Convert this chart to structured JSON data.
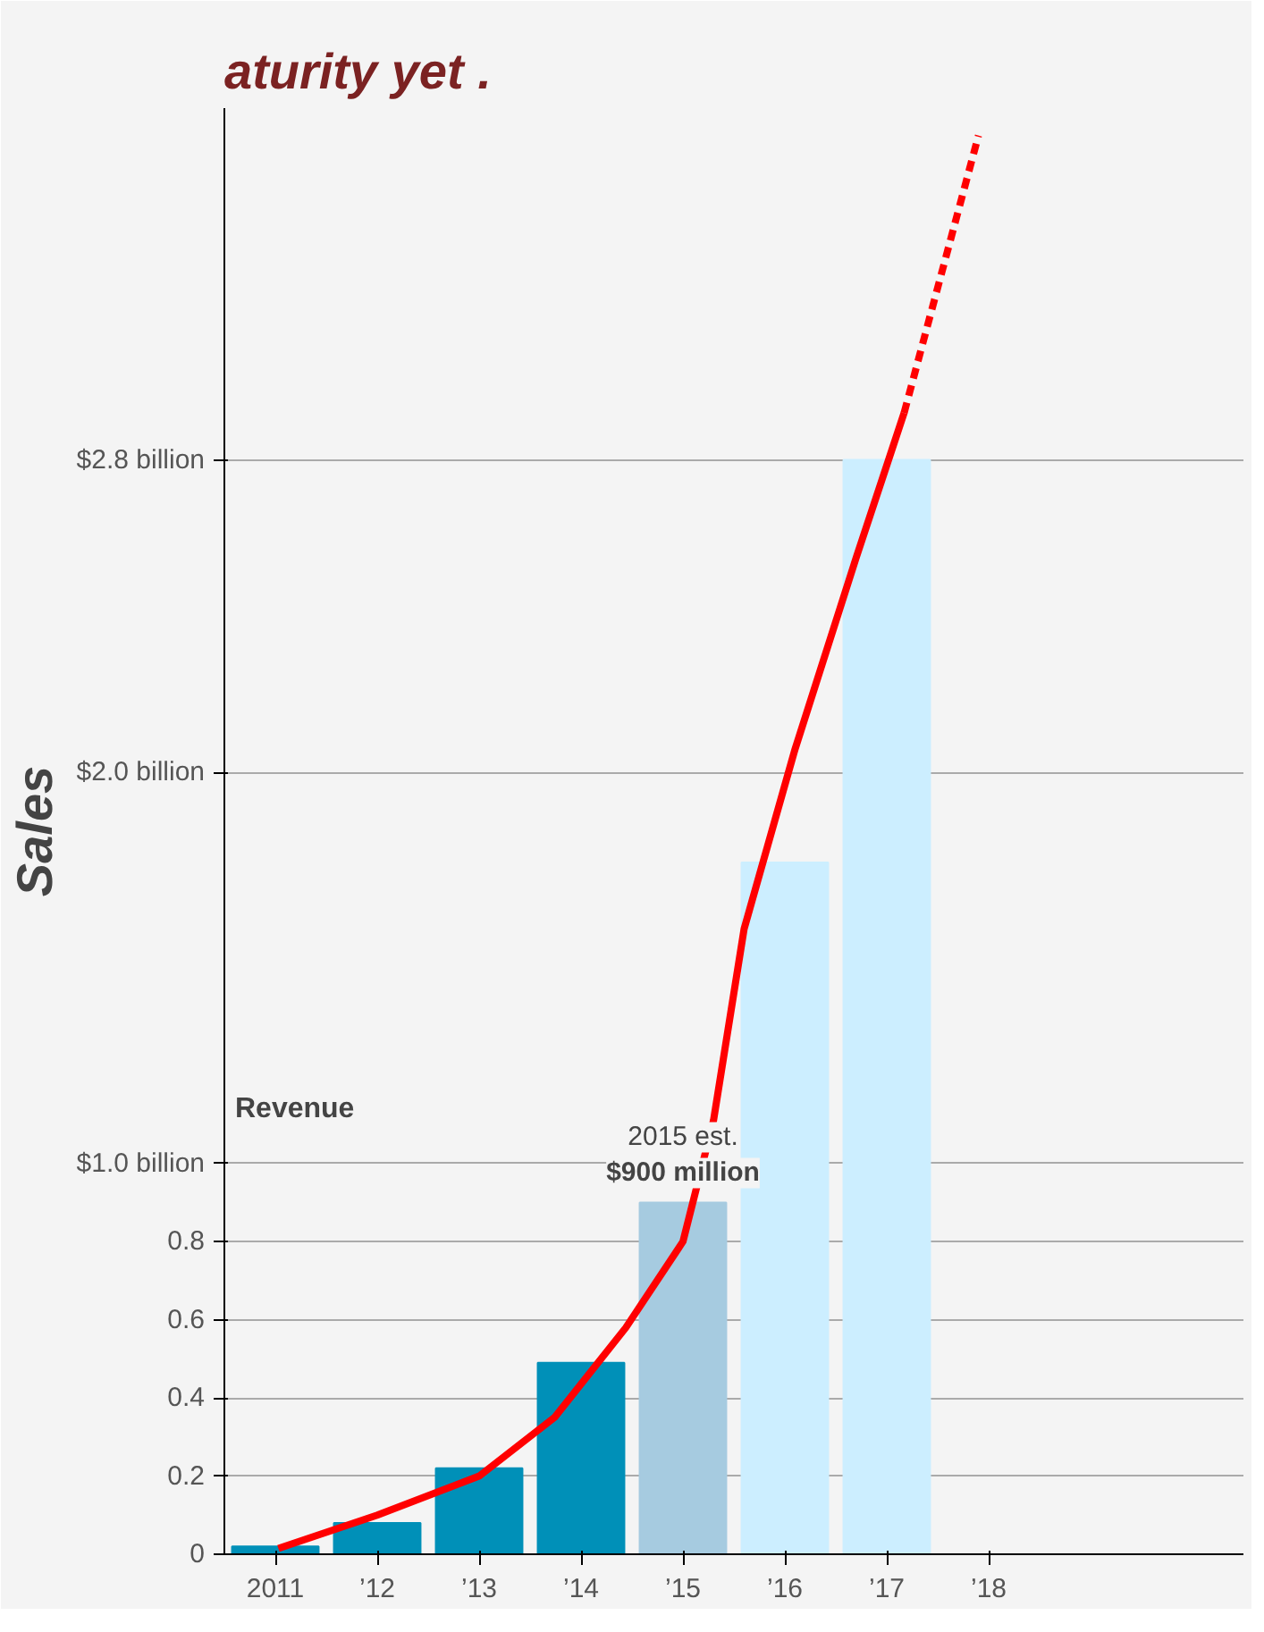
{
  "chart_data": {
    "type": "bar",
    "title": "aturity yet .",
    "ylabel": "Sales",
    "x": [
      2011,
      2012,
      2013,
      2014,
      2015,
      2016,
      2017
    ],
    "series": [
      {
        "colors": [
          "#0090b8",
          "#0090b8",
          "#0090b8",
          "#0090b8",
          "#a6cbe0",
          "#cceeff",
          "#cceeff"
        ],
        "values": [
          0.02,
          0.08,
          0.22,
          0.49,
          0.9,
          1.77,
          2.8
        ]
      },
      {
        "type": "line",
        "color": "#ff0000",
        "line_style": "solid",
        "x": [
          2011.03,
          2012,
          2013,
          2013.74,
          2014.44,
          2015,
          2015.3,
          2015.6,
          2016.1,
          2016.7,
          2017.17
        ],
        "values": [
          0.015,
          0.1,
          0.2,
          0.35,
          0.58,
          0.8,
          1.11,
          1.6,
          2.06,
          2.55,
          2.92
        ]
      },
      {
        "type": "line",
        "color": "#ff0000",
        "line_style": "dashed",
        "x": [
          2017.17,
          2017.9
        ],
        "values": [
          2.92,
          3.63
        ]
      }
    ],
    "xlim": [
      2010.5,
      2020.5
    ],
    "ylim": [
      0,
      3.7
    ],
    "xticks": [
      {
        "value": 2011,
        "label": "2011"
      },
      {
        "value": 2012,
        "label": "’12"
      },
      {
        "value": 2013,
        "label": "’13"
      },
      {
        "value": 2014,
        "label": "’14"
      },
      {
        "value": 2015,
        "label": "’15"
      },
      {
        "value": 2016,
        "label": "’16"
      },
      {
        "value": 2017,
        "label": "’17"
      },
      {
        "value": 2018,
        "label": "’18"
      }
    ],
    "yticks": [
      0,
      0.2,
      0.4,
      0.6,
      0.8,
      {
        "value": 1.0,
        "label": "$1.0 billion"
      },
      {
        "value": 2.0,
        "label": "$2.0 billion"
      },
      {
        "value": 2.8,
        "label": "$2.8 billion"
      }
    ],
    "grid": "y",
    "annotations": [
      "Revenue",
      {
        "text": "2015 est.",
        "x": 2015,
        "y": 0.9
      },
      {
        "text": "$900 million",
        "x": 2015,
        "y": 0.9
      }
    ]
  }
}
